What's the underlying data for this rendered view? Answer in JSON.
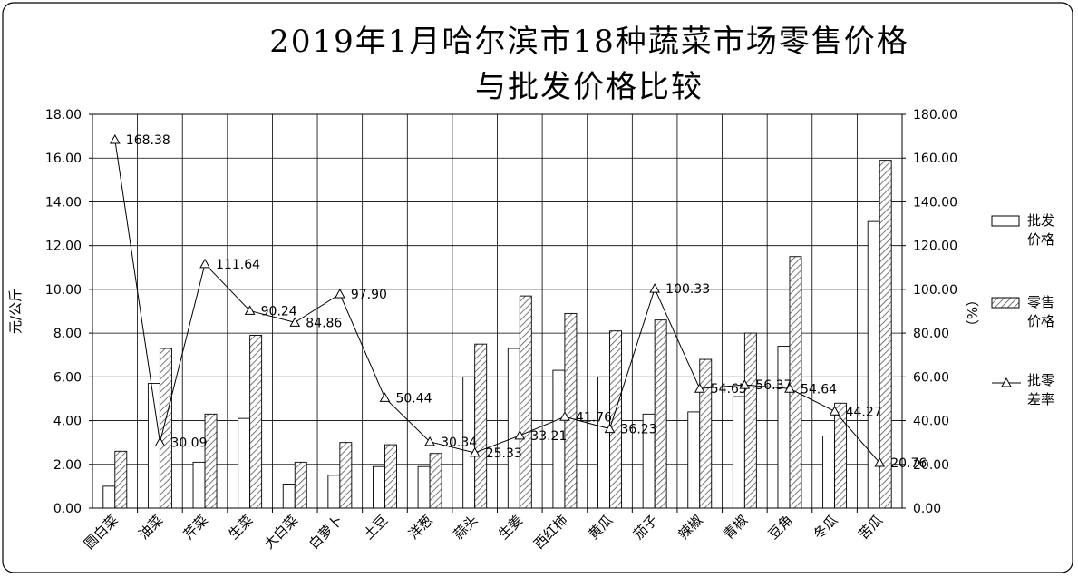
{
  "chart_data": {
    "type": "bar",
    "title_lines": [
      "2019年1月哈尔滨市18种蔬菜市场零售价格",
      "与批发价格比较"
    ],
    "ylabel_left": "元/公斤",
    "ylabel_right": "（%）",
    "categories": [
      "圆白菜",
      "油菜",
      "芹菜",
      "生菜",
      "大白菜",
      "白萝卜",
      "土豆",
      "洋葱",
      "蒜头",
      "生姜",
      "西红柿",
      "黄瓜",
      "茄子",
      "辣椒",
      "青椒",
      "豆角",
      "冬瓜",
      "苦瓜"
    ],
    "ylim_left": [
      0,
      18
    ],
    "ylim_right": [
      0,
      180
    ],
    "yticks_left": [
      "0.00",
      "2.00",
      "4.00",
      "6.00",
      "8.00",
      "10.00",
      "12.00",
      "14.00",
      "16.00",
      "18.00"
    ],
    "yticks_right": [
      "0.00",
      "20.00",
      "40.00",
      "60.00",
      "80.00",
      "100.00",
      "120.00",
      "140.00",
      "160.00",
      "180.00"
    ],
    "series": [
      {
        "name": "批发价格",
        "kind": "bar",
        "axis": "left",
        "values": [
          1.0,
          5.7,
          2.1,
          4.1,
          1.1,
          1.5,
          1.9,
          1.9,
          6.0,
          7.3,
          6.3,
          6.0,
          4.3,
          4.4,
          5.1,
          7.4,
          3.3,
          13.1
        ]
      },
      {
        "name": "零售价格",
        "kind": "bar",
        "axis": "left",
        "pattern": "hatched",
        "values": [
          2.6,
          7.3,
          4.3,
          7.9,
          2.1,
          3.0,
          2.9,
          2.5,
          7.5,
          9.7,
          8.9,
          8.1,
          8.6,
          6.8,
          8.0,
          11.5,
          4.8,
          15.9
        ]
      },
      {
        "name": "批零差率",
        "kind": "line",
        "axis": "right",
        "marker": "triangle",
        "values": [
          168.38,
          30.09,
          111.64,
          90.24,
          84.86,
          97.9,
          50.44,
          30.34,
          25.33,
          33.21,
          41.76,
          36.23,
          100.33,
          54.65,
          56.37,
          54.64,
          44.27,
          20.76
        ]
      }
    ],
    "line_labels": [
      "168.38",
      "30.09",
      "111.64",
      "90.24",
      "84.86",
      "97.90",
      "50.44",
      "30.34",
      "25.33",
      "33.21",
      "41.76",
      "36.23",
      "100.33",
      "54.65",
      "56.37",
      "54.64",
      "44.27",
      "20.76"
    ],
    "legend_position": "right",
    "legend": [
      {
        "line1": "批发",
        "line2": "价格"
      },
      {
        "line1": "零售",
        "line2": "价格"
      },
      {
        "line1": "批零",
        "line2": "差率"
      }
    ],
    "grid": true
  }
}
